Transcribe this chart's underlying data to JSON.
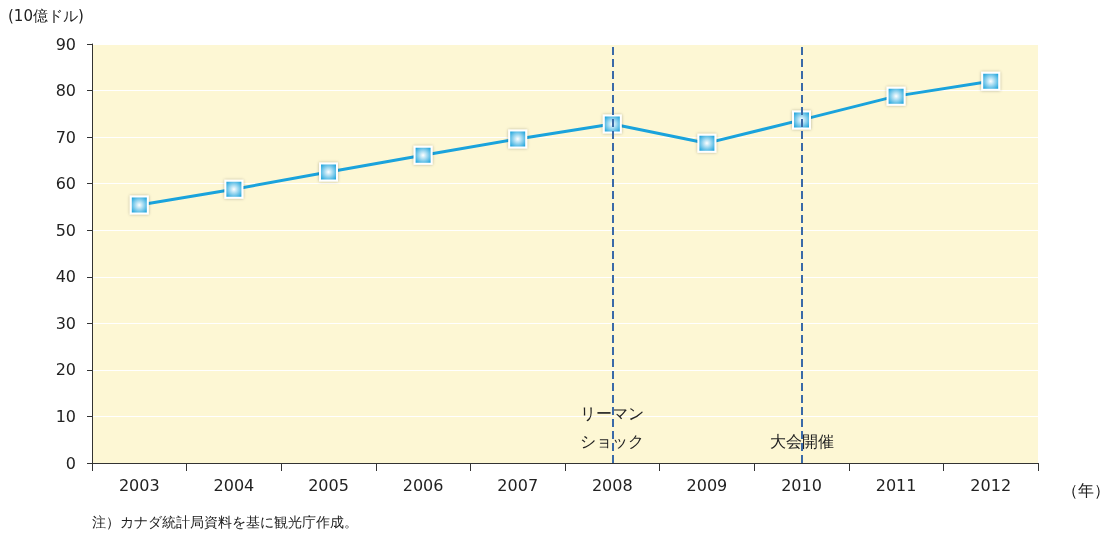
{
  "chart_data": {
    "type": "line",
    "ylabel": "(10億ドル)",
    "xlabel": "（年）",
    "categories": [
      "2003",
      "2004",
      "2005",
      "2006",
      "2007",
      "2008",
      "2009",
      "2010",
      "2011",
      "2012"
    ],
    "series": [
      {
        "color": "#1aa3dc",
        "values": [
          55.4,
          58.8,
          62.5,
          66.1,
          69.6,
          72.8,
          68.7,
          73.7,
          78.8,
          82.0
        ]
      }
    ],
    "ylim": [
      0,
      90
    ],
    "yticks": [
      0,
      10,
      20,
      30,
      40,
      50,
      60,
      70,
      80,
      90
    ],
    "grid": "y",
    "marker": "square",
    "line_style": "solid",
    "ref_lines": [
      {
        "axis": "x",
        "value": "2008",
        "label": "リーマンショック",
        "color": "#3a6aa8",
        "line_style": "dashed"
      },
      {
        "axis": "x",
        "value": "2010",
        "label": "大会開催",
        "color": "#3a6aa8",
        "line_style": "dashed"
      }
    ],
    "annotations": [
      "注）カナダ統計局資料を基に観光庁作成。"
    ]
  }
}
